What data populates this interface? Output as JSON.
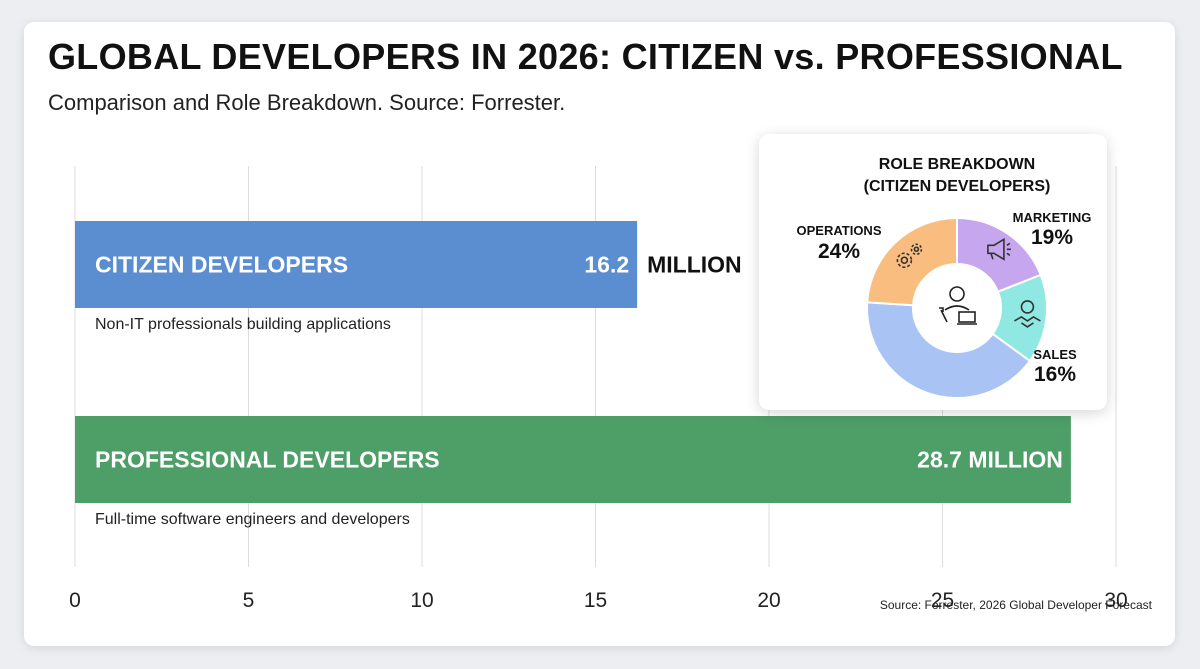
{
  "title": "GLOBAL DEVELOPERS IN 2026: CITIZEN vs. PROFESSIONAL",
  "subtitle": "Comparison and Role Breakdown. Source: Forrester.",
  "source_note": "Source: Forrester, 2026 Global Developer Forecast",
  "chart_data": [
    {
      "type": "bar",
      "orientation": "horizontal",
      "xlim": [
        0,
        30
      ],
      "x_ticks": [
        "0",
        "5",
        "10",
        "15",
        "20",
        "25",
        "30"
      ],
      "grid": true,
      "unit_label": "MILLION",
      "categories": [
        "CITIZEN DEVELOPERS",
        "PROFESSIONAL DEVELOPERS"
      ],
      "values": [
        16.2,
        28.7
      ],
      "value_labels": [
        "16.2",
        "28.7 MILLION"
      ],
      "descriptions": [
        "Non-IT professionals building applications",
        "Full-time software engineers and developers"
      ],
      "colors": [
        "#5b8ed0",
        "#4d9e67"
      ]
    },
    {
      "type": "pie",
      "variant": "donut",
      "title_lines": [
        "ROLE BREAKDOWN",
        "(CITIZEN DEVELOPERS)"
      ],
      "labels": [
        "MARKETING",
        "SALES",
        "",
        "OPERATIONS"
      ],
      "values": [
        19,
        16,
        41,
        24
      ],
      "value_labels": [
        "19%",
        "16%",
        "",
        "24%"
      ],
      "colors": [
        "#c6a6ee",
        "#8fe9e2",
        "#a9c3f4",
        "#f9be7f"
      ],
      "icons": [
        "megaphone-icon",
        "handshake-icon",
        "",
        "gears-icon"
      ],
      "center_icon": "developer-laptop-icon"
    }
  ]
}
